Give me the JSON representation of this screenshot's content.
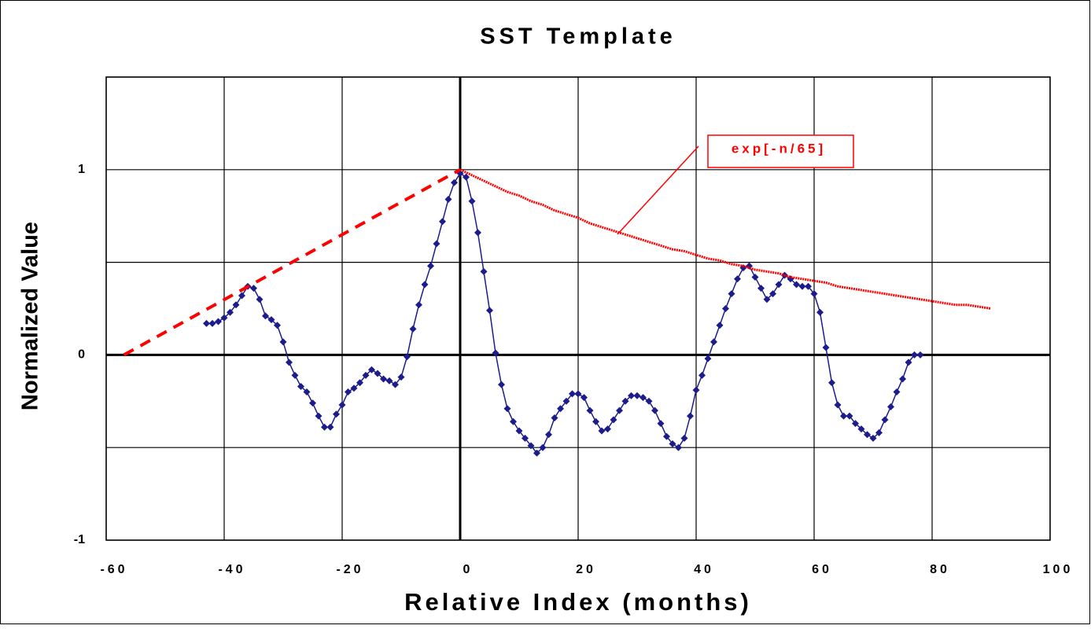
{
  "chart_data": {
    "type": "line",
    "title": "SST Template",
    "xlabel": "Relative Index (months)",
    "ylabel": "Normalized Value",
    "annotation": "exp[-n/65]",
    "xlim": [
      -60,
      100
    ],
    "xticks": [
      -60,
      -40,
      -20,
      0,
      20,
      40,
      60,
      80,
      100
    ],
    "ylim": [
      -1,
      1.5
    ],
    "yticks": [
      -1,
      0,
      1
    ],
    "ygrid": [
      -1,
      -0.5,
      0,
      0.5,
      1,
      1.5
    ],
    "grid": true,
    "series": [
      {
        "color": "#1c1c8c",
        "style": "line-diamond",
        "x": [
          -43,
          -42,
          -41,
          -40,
          -39,
          -38,
          -37,
          -36,
          -35,
          -34,
          -33,
          -32,
          -31,
          -30,
          -29,
          -28,
          -27,
          -26,
          -25,
          -24,
          -23,
          -22,
          -21,
          -20,
          -19,
          -18,
          -17,
          -16,
          -15,
          -14,
          -13,
          -12,
          -11,
          -10,
          -9,
          -8,
          -7,
          -6,
          -5,
          -4,
          -3,
          -2,
          -1,
          0,
          1,
          2,
          3,
          4,
          5,
          6,
          7,
          8,
          9,
          10,
          11,
          12,
          13,
          14,
          15,
          16,
          17,
          18,
          19,
          20,
          21,
          22,
          23,
          24,
          25,
          26,
          27,
          28,
          29,
          30,
          31,
          32,
          33,
          34,
          35,
          36,
          37,
          38,
          39,
          40,
          41,
          42,
          43,
          44,
          45,
          46,
          47,
          48,
          49,
          50,
          51,
          52,
          53,
          54,
          55,
          56,
          57,
          58,
          59,
          60,
          61,
          62,
          63,
          64,
          65,
          66,
          67,
          68,
          69,
          70,
          71,
          72,
          73,
          74,
          75,
          76,
          77,
          78
        ],
        "values": [
          0.17,
          0.17,
          0.18,
          0.2,
          0.23,
          0.27,
          0.32,
          0.37,
          0.36,
          0.3,
          0.21,
          0.19,
          0.16,
          0.07,
          -0.04,
          -0.11,
          -0.17,
          -0.2,
          -0.26,
          -0.33,
          -0.39,
          -0.39,
          -0.32,
          -0.27,
          -0.2,
          -0.18,
          -0.15,
          -0.11,
          -0.08,
          -0.1,
          -0.13,
          -0.14,
          -0.16,
          -0.12,
          -0.01,
          0.14,
          0.27,
          0.38,
          0.48,
          0.6,
          0.72,
          0.84,
          0.93,
          0.98,
          0.96,
          0.83,
          0.66,
          0.45,
          0.24,
          0.01,
          -0.16,
          -0.29,
          -0.36,
          -0.41,
          -0.45,
          -0.49,
          -0.53,
          -0.5,
          -0.43,
          -0.34,
          -0.29,
          -0.25,
          -0.21,
          -0.21,
          -0.23,
          -0.3,
          -0.36,
          -0.41,
          -0.4,
          -0.35,
          -0.3,
          -0.25,
          -0.22,
          -0.22,
          -0.23,
          -0.25,
          -0.3,
          -0.37,
          -0.44,
          -0.48,
          -0.5,
          -0.45,
          -0.33,
          -0.19,
          -0.11,
          -0.02,
          0.07,
          0.16,
          0.25,
          0.33,
          0.41,
          0.47,
          0.48,
          0.42,
          0.36,
          0.3,
          0.33,
          0.38,
          0.43,
          0.41,
          0.38,
          0.37,
          0.37,
          0.33,
          0.23,
          0.04,
          -0.15,
          -0.27,
          -0.33,
          -0.33,
          -0.37,
          -0.4,
          -0.43,
          -0.45,
          -0.42,
          -0.35,
          -0.28,
          -0.2,
          -0.13,
          -0.04,
          0,
          0
        ]
      },
      {
        "color": "#ff0000",
        "style": "dashed",
        "x": [
          -57,
          0
        ],
        "values": [
          0,
          1
        ]
      },
      {
        "color": "#ff0000",
        "style": "dotted",
        "x": [
          0,
          2,
          4,
          6,
          8,
          10,
          12,
          14,
          16,
          18,
          20,
          22,
          24,
          26,
          28,
          30,
          32,
          34,
          36,
          38,
          40,
          42,
          44,
          46,
          48,
          50,
          52,
          54,
          56,
          58,
          60,
          62,
          64,
          66,
          68,
          70,
          72,
          74,
          76,
          78,
          80,
          82,
          84,
          86,
          88,
          90
        ],
        "values": [
          1,
          0.97,
          0.94,
          0.91,
          0.88,
          0.86,
          0.83,
          0.81,
          0.78,
          0.76,
          0.74,
          0.71,
          0.69,
          0.67,
          0.65,
          0.63,
          0.61,
          0.59,
          0.57,
          0.56,
          0.54,
          0.52,
          0.51,
          0.49,
          0.48,
          0.46,
          0.45,
          0.44,
          0.42,
          0.41,
          0.4,
          0.39,
          0.37,
          0.36,
          0.35,
          0.34,
          0.33,
          0.32,
          0.31,
          0.3,
          0.29,
          0.28,
          0.27,
          0.27,
          0.26,
          0.25
        ]
      }
    ]
  }
}
